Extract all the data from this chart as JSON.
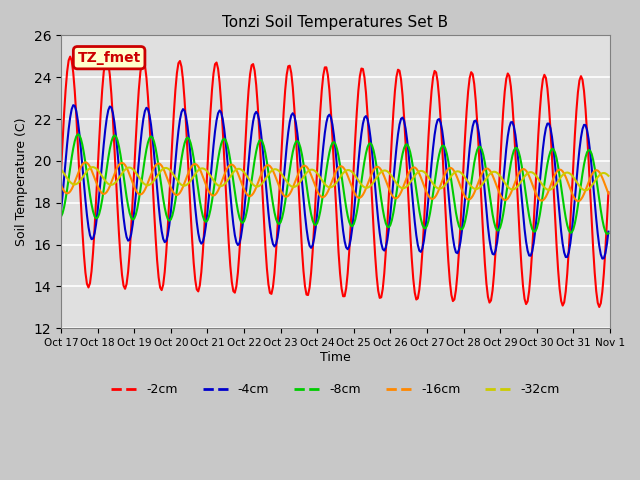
{
  "title": "Tonzi Soil Temperatures Set B",
  "xlabel": "Time",
  "ylabel": "Soil Temperature (C)",
  "ylim": [
    12,
    26
  ],
  "yticks": [
    12,
    14,
    16,
    18,
    20,
    22,
    24,
    26
  ],
  "annotation": "TZ_fmet",
  "annotation_color": "#cc0000",
  "annotation_bg": "#ffffcc",
  "x_labels": [
    "Oct 17",
    "Oct 18",
    "Oct 19",
    "Oct 20",
    "Oct 21",
    "Oct 22",
    "Oct 23",
    "Oct 24",
    "Oct 25",
    "Oct 26",
    "Oct 27",
    "Oct 28",
    "Oct 29",
    "Oct 30",
    "Oct 31",
    "Nov 1"
  ],
  "line_colors": [
    "#ff0000",
    "#0000cc",
    "#00cc00",
    "#ff8800",
    "#cccc00"
  ],
  "line_labels": [
    "-2cm",
    "-4cm",
    "-8cm",
    "-16cm",
    "-32cm"
  ],
  "line_widths": [
    1.5,
    1.5,
    1.5,
    1.5,
    1.5
  ],
  "background_color": "#e0e0e0",
  "n_days": 15,
  "n_points_per_day": 24,
  "amplitudes": [
    5.5,
    3.2,
    2.0,
    0.75,
    0.42
  ],
  "phase_lags": [
    0.0,
    0.1,
    0.22,
    0.42,
    0.62
  ],
  "trend_start": [
    19.5,
    19.5,
    19.3,
    19.2,
    19.3
  ],
  "trend_end": [
    18.5,
    18.5,
    18.5,
    18.8,
    19.0
  ]
}
